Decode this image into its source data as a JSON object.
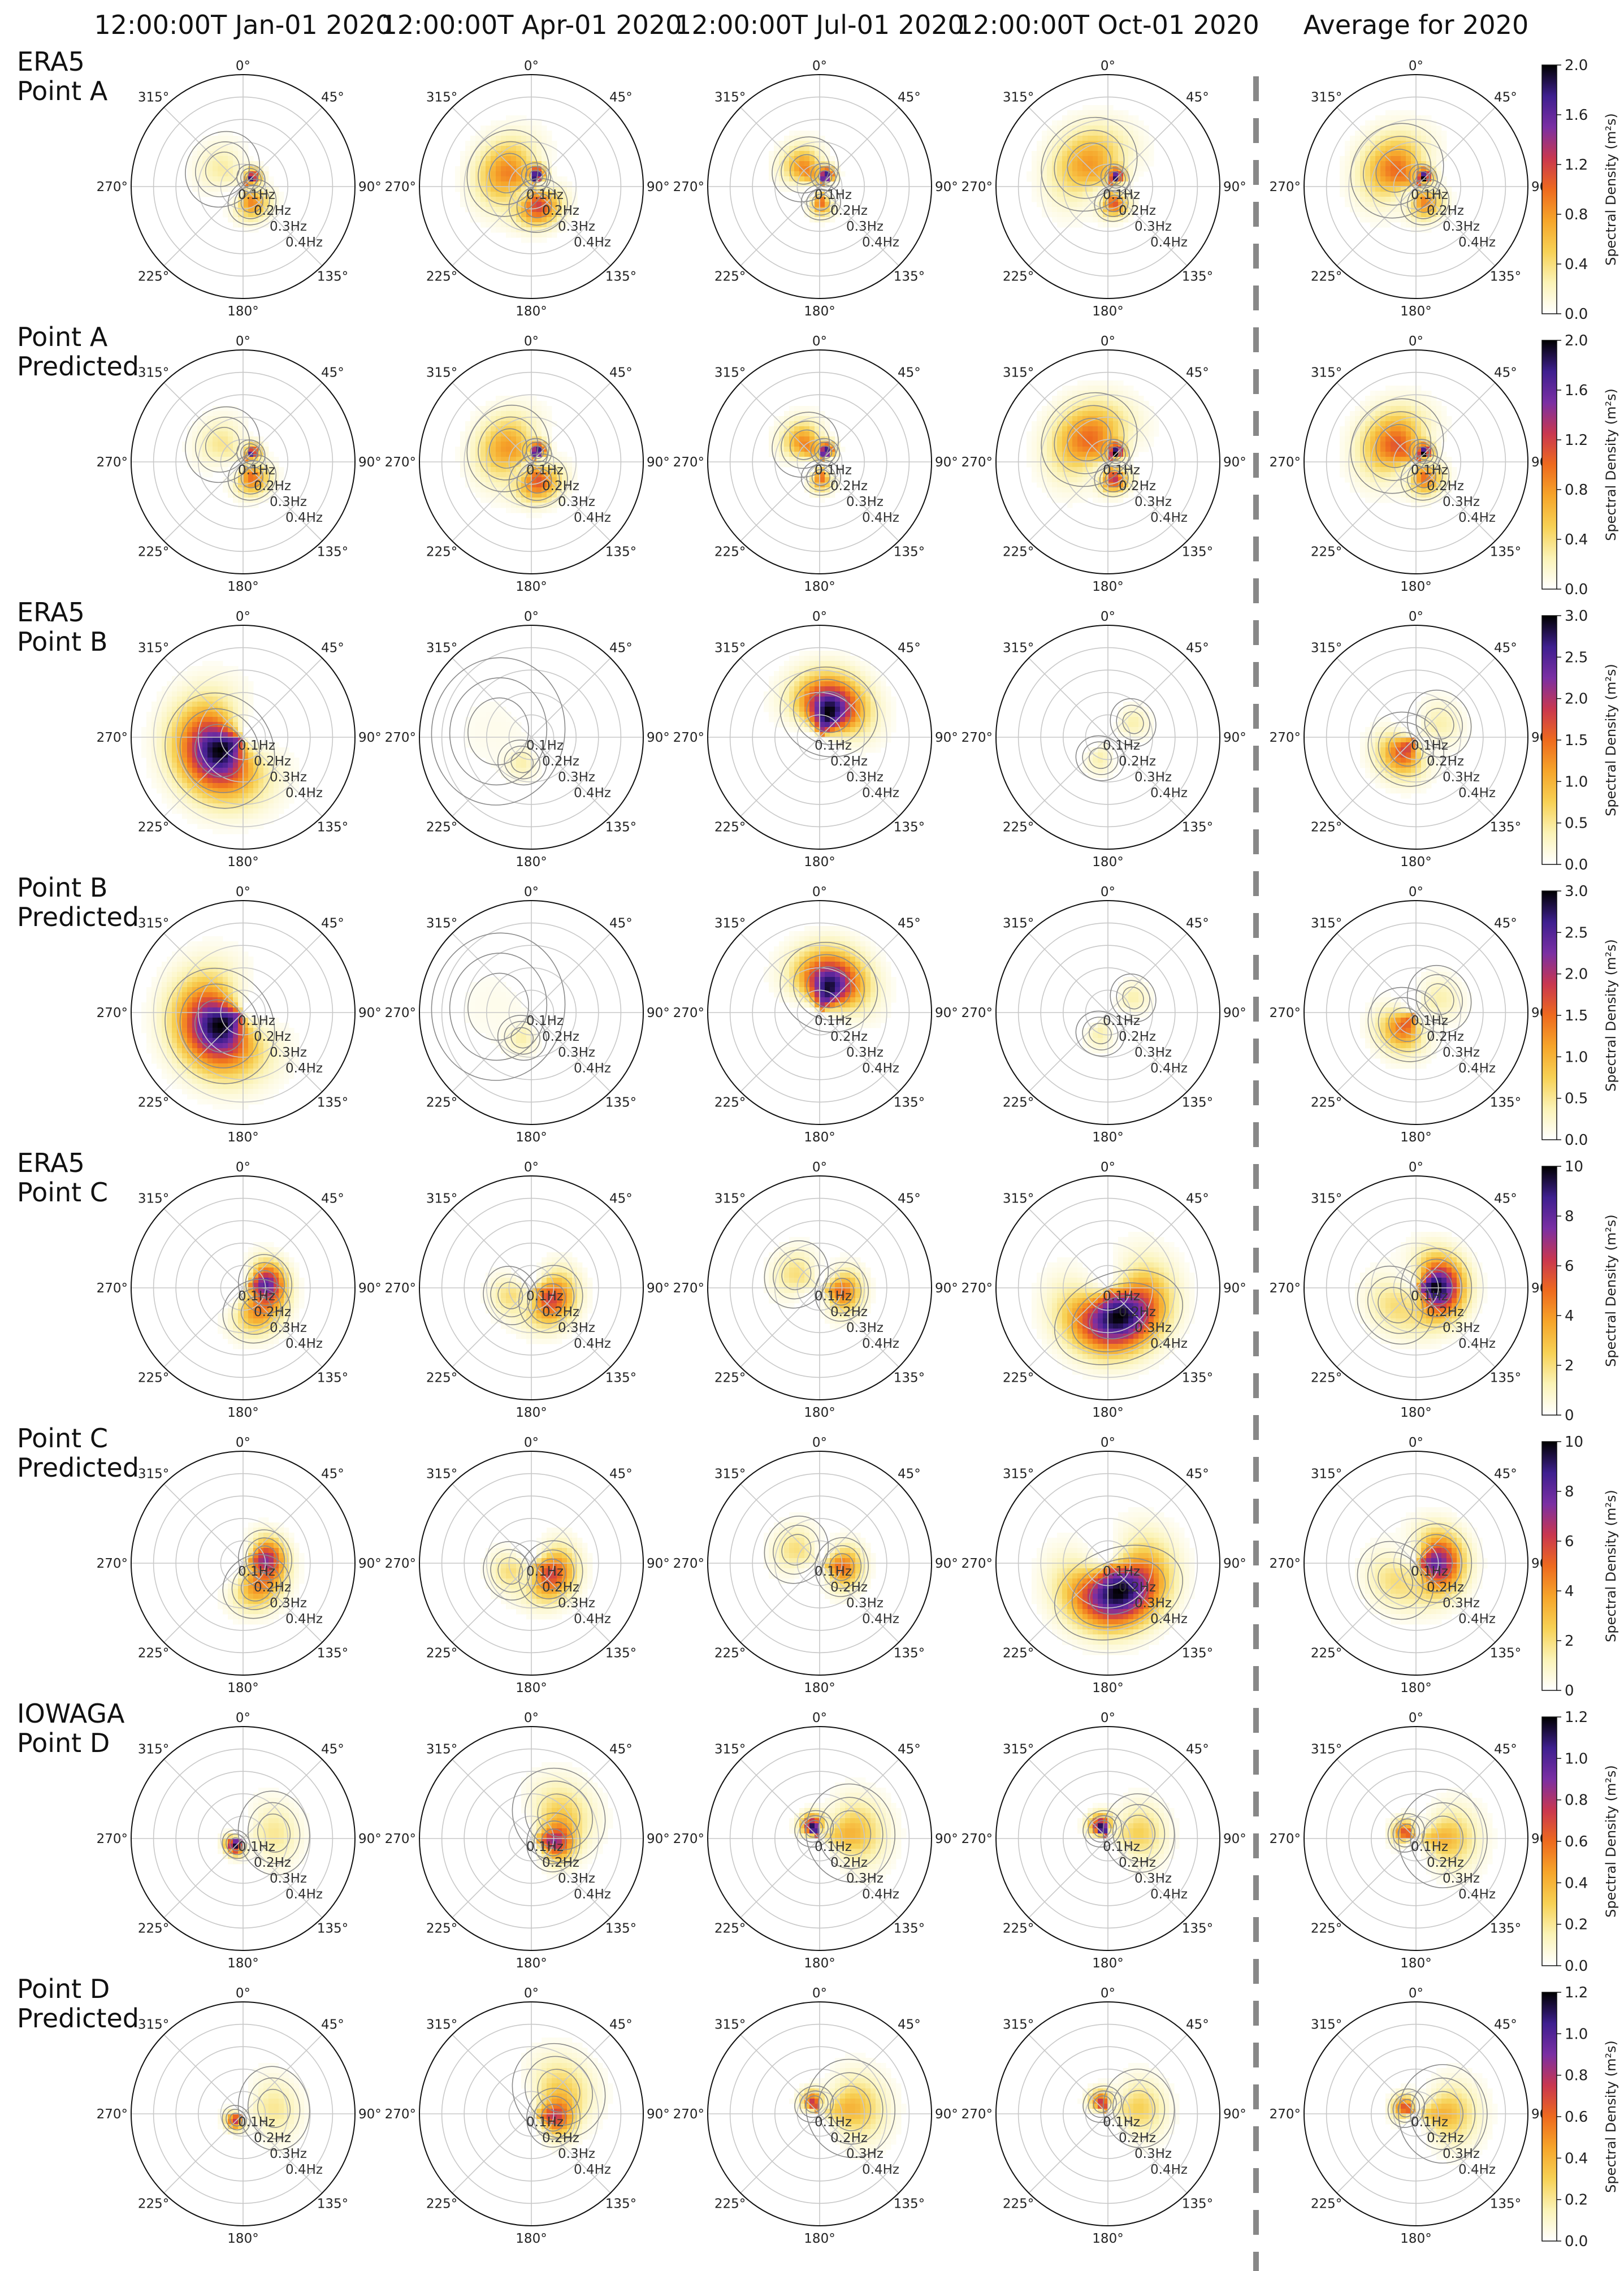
{
  "column_titles": [
    "12:00:00T Jan-01 2020",
    "12:00:00T Apr-01 2020",
    "12:00:00T Jul-01 2020",
    "12:00:00T Oct-01 2020",
    "Average for 2020"
  ],
  "row_labels": [
    [
      "ERA5",
      "Point A"
    ],
    [
      "Point A",
      "Predicted"
    ],
    [
      "ERA5",
      "Point B"
    ],
    [
      "Point B",
      "Predicted"
    ],
    [
      "ERA5",
      "Point C"
    ],
    [
      "Point C",
      "Predicted"
    ],
    [
      "IOWAGA",
      "Point D"
    ],
    [
      "Point D",
      "Predicted"
    ]
  ],
  "colors": {
    "colormap": [
      "#ffffff",
      "#fbf3b6",
      "#f7d155",
      "#f6a52a",
      "#ee6a1e",
      "#c9374f",
      "#7a2fa3",
      "#3e1f8f",
      "#000000"
    ],
    "contour": "#8a8a8a",
    "grid": "#c8c8c8",
    "separator": "#888888"
  },
  "chart_data": {
    "type": "heatmap",
    "subtype": "polar directional wave spectrum grid",
    "angle_labels": [
      "0°",
      "45°",
      "90°",
      "135°",
      "180°",
      "225°",
      "270°",
      "315°"
    ],
    "frequency_labels": [
      "0.1Hz",
      "0.2Hz",
      "0.3Hz",
      "0.4Hz"
    ],
    "frequency_range": [
      0.0,
      0.5
    ],
    "colorbar_label": "Spectral Density (m²s)",
    "colorbar_ticks": {
      "point_a": [
        "0.0",
        "0.4",
        "0.8",
        "1.2",
        "1.6",
        "2.0"
      ],
      "point_b": [
        "0.0",
        "0.5",
        "1.0",
        "1.5",
        "2.0",
        "2.5",
        "3.0"
      ],
      "point_c": [
        "0",
        "2",
        "4",
        "6",
        "8",
        "10"
      ],
      "point_d": [
        "0.0",
        "0.2",
        "0.4",
        "0.6",
        "0.8",
        "1.0",
        "1.2"
      ]
    },
    "colorbar_max": [
      2.0,
      2.0,
      3.0,
      3.0,
      10,
      10,
      1.2,
      1.2
    ],
    "panels": [
      [
        {
          "peaks": [
            [
              310,
              0.12,
              0.3,
              0.08,
              30
            ],
            [
              45,
              0.05,
              1.8,
              0.03,
              20
            ],
            [
              150,
              0.08,
              0.9,
              0.05,
              30
            ]
          ]
        },
        {
          "peaks": [
            [
              300,
              0.12,
              0.9,
              0.09,
              40
            ],
            [
              25,
              0.05,
              2.0,
              0.03,
              20
            ],
            [
              160,
              0.09,
              1.2,
              0.06,
              35
            ]
          ]
        },
        {
          "peaks": [
            [
              320,
              0.1,
              0.9,
              0.07,
              25
            ],
            [
              30,
              0.05,
              2.0,
              0.03,
              20
            ],
            [
              175,
              0.07,
              1.0,
              0.04,
              20
            ]
          ]
        },
        {
          "peaks": [
            [
              320,
              0.13,
              0.8,
              0.1,
              45
            ],
            [
              40,
              0.05,
              1.8,
              0.03,
              20
            ],
            [
              160,
              0.08,
              1.1,
              0.04,
              25
            ]
          ]
        },
        {
          "peaks": [
            [
              310,
              0.11,
              1.0,
              0.1,
              40
            ],
            [
              40,
              0.05,
              2.0,
              0.03,
              20
            ],
            [
              150,
              0.08,
              0.9,
              0.05,
              30
            ]
          ]
        }
      ],
      [
        {
          "peaks": [
            [
              310,
              0.12,
              0.35,
              0.08,
              30
            ],
            [
              45,
              0.05,
              1.7,
              0.03,
              20
            ],
            [
              150,
              0.08,
              1.0,
              0.05,
              30
            ]
          ]
        },
        {
          "peaks": [
            [
              300,
              0.12,
              0.8,
              0.09,
              40
            ],
            [
              30,
              0.05,
              2.0,
              0.03,
              20
            ],
            [
              160,
              0.09,
              1.1,
              0.06,
              35
            ]
          ]
        },
        {
          "peaks": [
            [
              320,
              0.1,
              0.9,
              0.07,
              25
            ],
            [
              30,
              0.05,
              2.0,
              0.03,
              20
            ],
            [
              175,
              0.07,
              1.0,
              0.04,
              20
            ]
          ]
        },
        {
          "peaks": [
            [
              320,
              0.13,
              1.0,
              0.1,
              45
            ],
            [
              40,
              0.05,
              2.0,
              0.03,
              20
            ],
            [
              160,
              0.08,
              1.3,
              0.04,
              25
            ]
          ]
        },
        {
          "peaks": [
            [
              310,
              0.11,
              1.1,
              0.1,
              40
            ],
            [
              40,
              0.05,
              2.0,
              0.03,
              20
            ],
            [
              150,
              0.08,
              1.0,
              0.05,
              30
            ]
          ]
        }
      ],
      [
        {
          "peaks": [
            [
              240,
              0.12,
              3.0,
              0.12,
              50
            ]
          ]
        },
        {
          "peaks": [
            [
              200,
              0.12,
              0.4,
              0.05,
              20
            ],
            [
              280,
              0.15,
              0.1,
              0.15,
              40
            ]
          ]
        },
        {
          "peaks": [
            [
              20,
              0.12,
              3.0,
              0.1,
              35
            ]
          ]
        },
        {
          "peaks": [
            [
              60,
              0.13,
              0.4,
              0.05,
              20
            ],
            [
              200,
              0.1,
              0.4,
              0.05,
              20
            ]
          ]
        },
        {
          "peaks": [
            [
              220,
              0.07,
              1.8,
              0.08,
              35
            ],
            [
              60,
              0.12,
              0.4,
              0.07,
              30
            ]
          ]
        }
      ],
      [
        {
          "peaks": [
            [
              240,
              0.12,
              3.0,
              0.12,
              50
            ]
          ]
        },
        {
          "peaks": [
            [
              200,
              0.12,
              0.4,
              0.05,
              20
            ],
            [
              280,
              0.15,
              0.1,
              0.15,
              40
            ]
          ]
        },
        {
          "peaks": [
            [
              20,
              0.12,
              2.9,
              0.1,
              35
            ]
          ]
        },
        {
          "peaks": [
            [
              60,
              0.13,
              0.4,
              0.05,
              20
            ],
            [
              200,
              0.1,
              0.4,
              0.05,
              20
            ]
          ]
        },
        {
          "peaks": [
            [
              220,
              0.07,
              1.6,
              0.08,
              35
            ],
            [
              60,
              0.12,
              0.4,
              0.07,
              30
            ]
          ]
        }
      ],
      [
        {
          "peaks": [
            [
              80,
              0.1,
              8.0,
              0.06,
              30
            ],
            [
              150,
              0.12,
              4.0,
              0.07,
              30
            ]
          ]
        },
        {
          "peaks": [
            [
              120,
              0.1,
              6.0,
              0.07,
              40
            ],
            [
              250,
              0.1,
              2.0,
              0.06,
              30
            ]
          ]
        },
        {
          "peaks": [
            [
              100,
              0.1,
              5.0,
              0.06,
              30
            ],
            [
              300,
              0.12,
              2.0,
              0.07,
              30
            ]
          ]
        },
        {
          "peaks": [
            [
              160,
              0.14,
              10.0,
              0.1,
              55
            ]
          ]
        },
        {
          "peaks": [
            [
              90,
              0.09,
              10.0,
              0.08,
              45
            ],
            [
              230,
              0.12,
              2.0,
              0.08,
              40
            ]
          ]
        }
      ],
      [
        {
          "peaks": [
            [
              80,
              0.1,
              7.0,
              0.06,
              30
            ],
            [
              150,
              0.12,
              4.0,
              0.07,
              30
            ]
          ]
        },
        {
          "peaks": [
            [
              120,
              0.1,
              6.0,
              0.07,
              40
            ],
            [
              250,
              0.1,
              2.0,
              0.06,
              30
            ]
          ]
        },
        {
          "peaks": [
            [
              100,
              0.1,
              5.0,
              0.06,
              30
            ],
            [
              300,
              0.12,
              2.0,
              0.07,
              30
            ]
          ]
        },
        {
          "peaks": [
            [
              160,
              0.14,
              10.0,
              0.1,
              55
            ]
          ]
        },
        {
          "peaks": [
            [
              90,
              0.09,
              8.0,
              0.08,
              45
            ],
            [
              230,
              0.12,
              2.0,
              0.08,
              40
            ]
          ]
        }
      ],
      [
        {
          "peaks": [
            [
              230,
              0.04,
              1.2,
              0.03,
              30
            ],
            [
              80,
              0.14,
              0.2,
              0.08,
              35
            ]
          ]
        },
        {
          "peaks": [
            [
              100,
              0.1,
              0.8,
              0.06,
              25
            ],
            [
              50,
              0.16,
              0.3,
              0.1,
              30
            ]
          ]
        },
        {
          "peaks": [
            [
              330,
              0.05,
              1.2,
              0.04,
              25
            ],
            [
              80,
              0.14,
              0.4,
              0.1,
              30
            ]
          ]
        },
        {
          "peaks": [
            [
              330,
              0.05,
              1.2,
              0.04,
              25
            ],
            [
              80,
              0.14,
              0.3,
              0.08,
              30
            ]
          ]
        },
        {
          "peaks": [
            [
              300,
              0.05,
              0.7,
              0.04,
              30
            ],
            [
              90,
              0.12,
              0.4,
              0.1,
              30
            ]
          ]
        }
      ],
      [
        {
          "peaks": [
            [
              230,
              0.04,
              0.8,
              0.03,
              30
            ],
            [
              80,
              0.14,
              0.2,
              0.08,
              35
            ]
          ]
        },
        {
          "peaks": [
            [
              100,
              0.1,
              0.7,
              0.06,
              25
            ],
            [
              50,
              0.16,
              0.3,
              0.1,
              30
            ]
          ]
        },
        {
          "peaks": [
            [
              330,
              0.05,
              0.8,
              0.04,
              25
            ],
            [
              80,
              0.14,
              0.4,
              0.1,
              30
            ]
          ]
        },
        {
          "peaks": [
            [
              330,
              0.05,
              0.8,
              0.04,
              25
            ],
            [
              80,
              0.14,
              0.3,
              0.08,
              30
            ]
          ]
        },
        {
          "peaks": [
            [
              300,
              0.05,
              0.7,
              0.04,
              30
            ],
            [
              90,
              0.12,
              0.4,
              0.1,
              30
            ]
          ]
        }
      ]
    ]
  }
}
